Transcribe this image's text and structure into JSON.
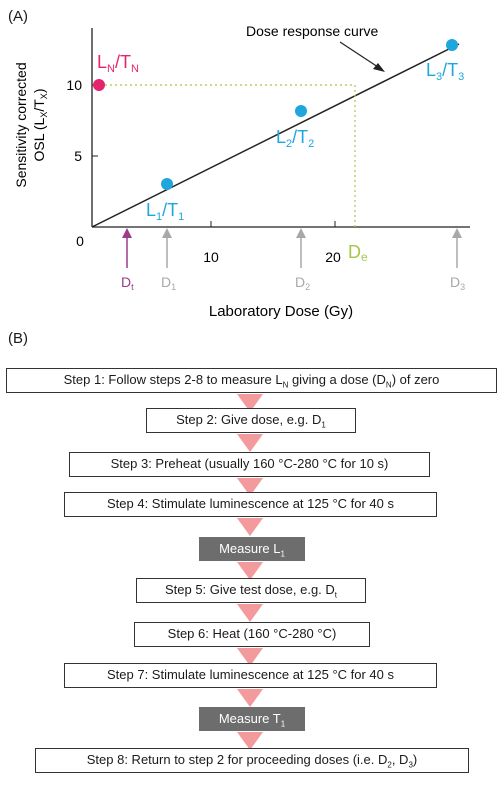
{
  "panel_a": {
    "label": "(A)",
    "ylabel_line1": "Sensitivity corrected",
    "ylabel_line2": "OSL (Lx/Tx)",
    "xlabel": "Laboratory Dose (Gy)",
    "curve_label": "Dose response curve",
    "natural_label": "LN/TN",
    "de_label": "De",
    "dt_label": "Dt",
    "colors": {
      "natural": "#e6246e",
      "points": "#1ea6dd",
      "guide": "#a6c64a",
      "arrows_grey": "#a8a8a8",
      "dt_arrow": "#9b3b8a"
    }
  },
  "chart_data": {
    "type": "line",
    "x_ticks": [
      0,
      10,
      20
    ],
    "y_ticks": [
      5,
      10
    ],
    "xlim": [
      0,
      30
    ],
    "ylim": [
      0,
      13
    ],
    "curve": {
      "x": [
        0,
        30
      ],
      "y": [
        0,
        12.5
      ]
    },
    "points": [
      {
        "label": "L1/T1",
        "x": 6.0,
        "y": 3.1
      },
      {
        "label": "L2/T2",
        "x": 17.0,
        "y": 8.1
      },
      {
        "label": "L3/T3",
        "x": 29.5,
        "y": 12.6
      }
    ],
    "natural": {
      "label": "LN/TN",
      "x": 0.6,
      "y": 10.0
    },
    "de": 21.5,
    "dose_markers": [
      {
        "label": "Dt",
        "x": 2.7
      },
      {
        "label": "D1",
        "x": 6.0
      },
      {
        "label": "D2",
        "x": 17.0
      },
      {
        "label": "D3",
        "x": 29.5
      }
    ]
  },
  "panel_b": {
    "label": "(B)",
    "step1": "Step 1: Follow steps 2-8 to measure L_N giving a dose (D_N) of zero",
    "step2": "Step 2: Give dose, e.g. D_1",
    "step3": "Step 3: Preheat (usually 160 °C-280 °C for 10 s)",
    "step4": "Step 4: Stimulate luminescence at 125 °C for 40 s",
    "measure1": "Measure L_1",
    "step5": "Step 5: Give test dose, e.g. D_t",
    "step6": "Step 6: Heat (160 °C-280 °C)",
    "step7": "Step 7: Stimulate luminescence at 125 °C for 40 s",
    "measure2": "Measure T_1",
    "step8": "Step 8: Return to step 2 for proceeding doses (i.e. D_2, D_3)"
  }
}
